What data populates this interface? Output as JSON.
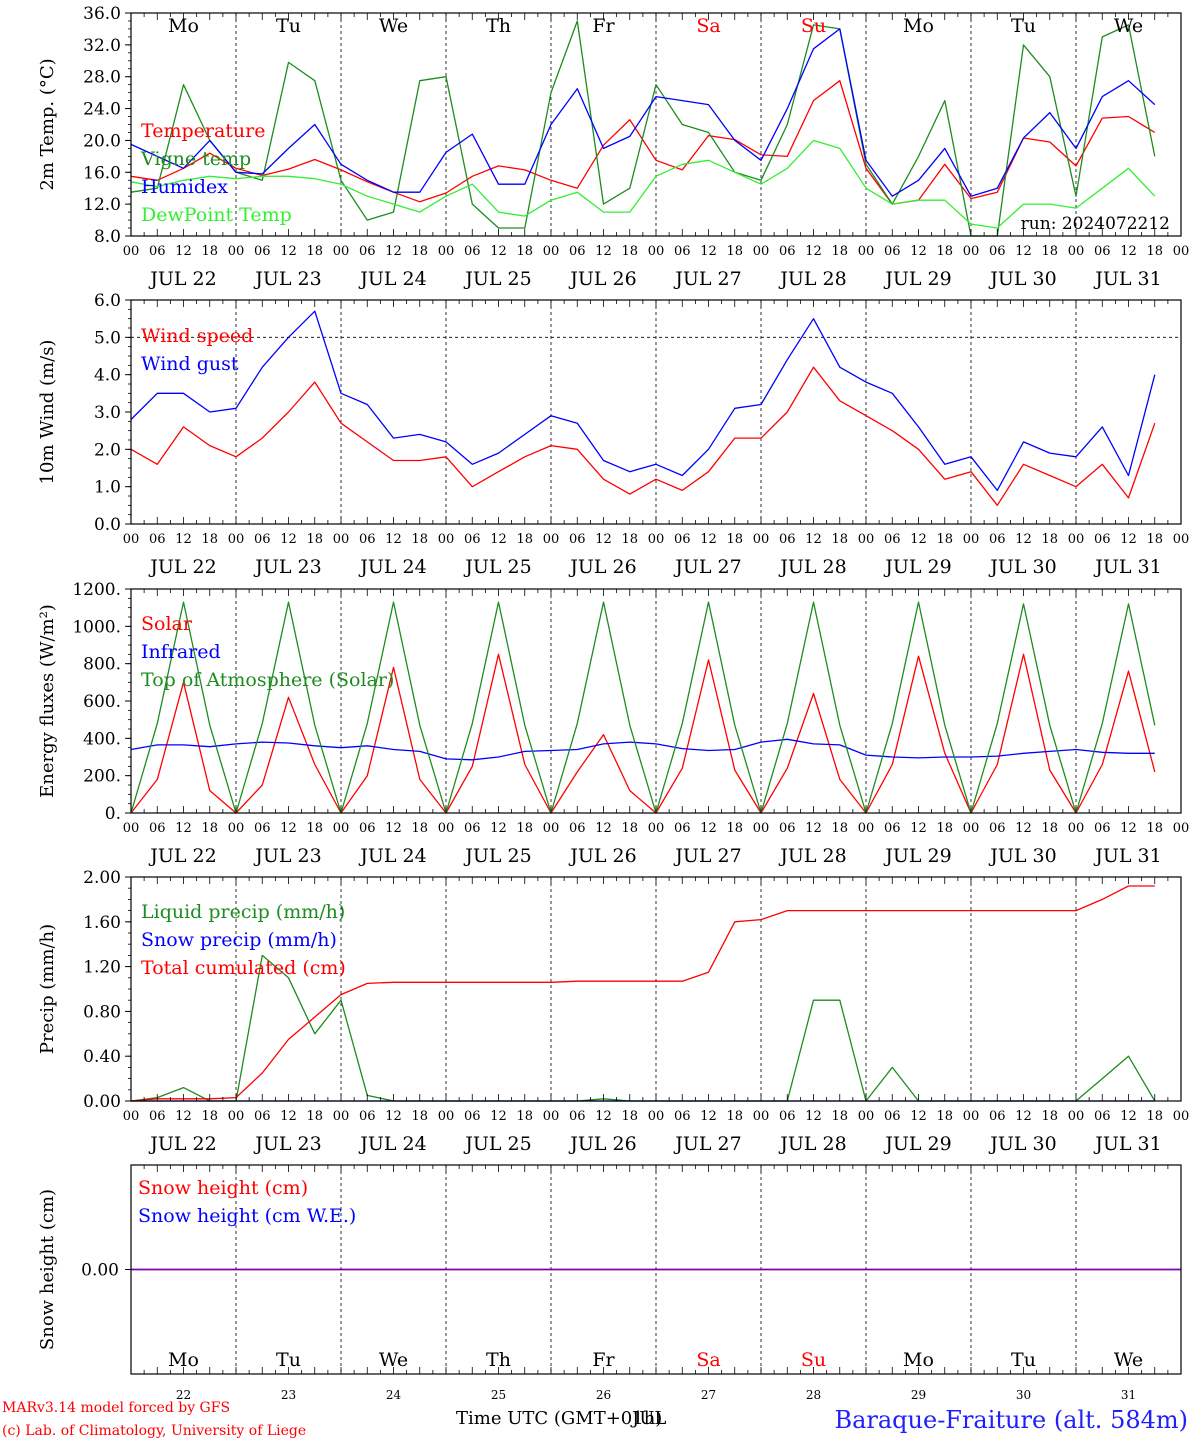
{
  "chart_data": [
    {
      "type": "line",
      "ylabel": "2m Temp. (°C)",
      "ylim": [
        8,
        36
      ],
      "yticks": [
        "8.0",
        "12.0",
        "16.0",
        "20.0",
        "24.0",
        "28.0",
        "32.0",
        "36.0"
      ],
      "dashed_levels": [],
      "run_label": "run: 2024072212",
      "x_hours": [
        0,
        6,
        12,
        18,
        24,
        30,
        36,
        42,
        48,
        54,
        60,
        66,
        72,
        78,
        84,
        90,
        96,
        102,
        108,
        114,
        120,
        126,
        132,
        138,
        144,
        150,
        156,
        162,
        168,
        174,
        180,
        186,
        192,
        198,
        204,
        210,
        216,
        222,
        228,
        234
      ],
      "series": [
        {
          "name": "Temperature",
          "color": "#ff0000",
          "values": [
            15.5,
            15.0,
            16.5,
            18.4,
            16.5,
            15.6,
            16.4,
            17.6,
            16.3,
            14.8,
            13.5,
            12.3,
            13.4,
            15.5,
            16.8,
            16.3,
            15.0,
            14.0,
            19.4,
            22.6,
            17.5,
            16.3,
            20.6,
            20.1,
            18.2,
            18.0,
            25.0,
            27.5,
            16.5,
            12.0,
            12.5,
            17.0,
            12.7,
            13.5,
            20.3,
            19.8,
            16.8,
            22.8,
            23.0,
            21.0
          ]
        },
        {
          "name": "Vigne temp",
          "color": "#1e8c1e",
          "values": [
            13.5,
            14.0,
            27.0,
            20.0,
            16.0,
            15.0,
            29.8,
            27.5,
            15.0,
            10.0,
            11.0,
            27.5,
            28.0,
            12.0,
            9.0,
            9.0,
            26.0,
            35.0,
            12.0,
            14.0,
            27.0,
            22.0,
            21.0,
            16.0,
            15.0,
            22.0,
            34.5,
            34.0,
            17.0,
            12.0,
            18.0,
            25.0,
            8.0,
            7.5,
            32.0,
            28.0,
            13.0,
            33.0,
            34.5,
            18.0
          ]
        },
        {
          "name": "Humidex",
          "color": "#0000ff",
          "values": [
            19.5,
            18.0,
            16.5,
            20.0,
            16.0,
            15.8,
            19.0,
            22.0,
            17.0,
            15.0,
            13.5,
            13.5,
            18.5,
            20.8,
            14.5,
            14.5,
            22.0,
            26.5,
            19.0,
            20.5,
            25.5,
            25.0,
            24.5,
            20.0,
            17.5,
            24.0,
            31.5,
            34.0,
            17.5,
            13.0,
            15.0,
            19.0,
            13.0,
            14.0,
            20.3,
            23.5,
            19.0,
            25.5,
            27.5,
            24.5
          ]
        },
        {
          "name": "DewPoint Temp",
          "color": "#33ee33",
          "values": [
            14.8,
            14.2,
            15.0,
            15.5,
            15.2,
            15.5,
            15.5,
            15.2,
            14.5,
            13.0,
            12.0,
            11.0,
            13.0,
            14.5,
            11.0,
            10.5,
            12.5,
            13.5,
            11.0,
            11.0,
            15.5,
            17.0,
            17.5,
            16.0,
            14.5,
            16.5,
            20.0,
            19.0,
            14.0,
            12.0,
            12.5,
            12.5,
            9.5,
            9.0,
            12.0,
            12.0,
            11.5,
            14.0,
            16.5,
            13.0
          ]
        }
      ],
      "legend": [
        "Temperature",
        "Vigne temp",
        "Humidex",
        "DewPoint Temp"
      ]
    },
    {
      "type": "line",
      "ylabel": "10m Wind (m/s)",
      "ylim": [
        0,
        6
      ],
      "yticks": [
        "0.0",
        "1.0",
        "2.0",
        "3.0",
        "4.0",
        "5.0",
        "6.0"
      ],
      "dashed_levels": [
        5
      ],
      "x_hours": [
        0,
        6,
        12,
        18,
        24,
        30,
        36,
        42,
        48,
        54,
        60,
        66,
        72,
        78,
        84,
        90,
        96,
        102,
        108,
        114,
        120,
        126,
        132,
        138,
        144,
        150,
        156,
        162,
        168,
        174,
        180,
        186,
        192,
        198,
        204,
        210,
        216,
        222,
        228,
        234
      ],
      "series": [
        {
          "name": "Wind speed",
          "color": "#ff0000",
          "values": [
            2.0,
            1.6,
            2.6,
            2.1,
            1.8,
            2.3,
            3.0,
            3.8,
            2.7,
            2.2,
            1.7,
            1.7,
            1.8,
            1.0,
            1.4,
            1.8,
            2.1,
            2.0,
            1.2,
            0.8,
            1.2,
            0.9,
            1.4,
            2.3,
            2.3,
            3.0,
            4.2,
            3.3,
            2.9,
            2.5,
            2.0,
            1.2,
            1.4,
            0.5,
            1.6,
            1.3,
            1.0,
            1.6,
            0.7,
            2.7
          ]
        },
        {
          "name": "Wind gust",
          "color": "#0000ff",
          "values": [
            2.8,
            3.5,
            3.5,
            3.0,
            3.1,
            4.2,
            5.0,
            5.7,
            3.5,
            3.2,
            2.3,
            2.4,
            2.2,
            1.6,
            1.9,
            2.4,
            2.9,
            2.7,
            1.7,
            1.4,
            1.6,
            1.3,
            2.0,
            3.1,
            3.2,
            4.4,
            5.5,
            4.2,
            3.8,
            3.5,
            2.6,
            1.6,
            1.8,
            0.9,
            2.2,
            1.9,
            1.8,
            2.6,
            1.3,
            4.0
          ]
        }
      ],
      "legend": [
        "Wind speed",
        "Wind gust"
      ]
    },
    {
      "type": "line",
      "ylabel": "Energy fluxes (W/m²)",
      "ylim": [
        0,
        1200
      ],
      "yticks": [
        "0.",
        "200.",
        "400.",
        "600.",
        "800.",
        "1000.",
        "1200."
      ],
      "dashed_levels": [],
      "x_hours": [
        0,
        6,
        12,
        18,
        24,
        30,
        36,
        42,
        48,
        54,
        60,
        66,
        72,
        78,
        84,
        90,
        96,
        102,
        108,
        114,
        120,
        126,
        132,
        138,
        144,
        150,
        156,
        162,
        168,
        174,
        180,
        186,
        192,
        198,
        204,
        210,
        216,
        222,
        228,
        234
      ],
      "series": [
        {
          "name": "Solar",
          "color": "#ff0000",
          "values": [
            0,
            180,
            700,
            120,
            0,
            150,
            620,
            260,
            0,
            200,
            780,
            180,
            0,
            250,
            850,
            260,
            0,
            220,
            420,
            120,
            0,
            240,
            820,
            230,
            0,
            240,
            640,
            180,
            0,
            260,
            840,
            320,
            0,
            260,
            850,
            230,
            0,
            260,
            760,
            220
          ]
        },
        {
          "name": "Infrared",
          "color": "#0000ff",
          "values": [
            340,
            365,
            365,
            355,
            370,
            380,
            375,
            360,
            350,
            360,
            340,
            330,
            290,
            285,
            300,
            330,
            335,
            340,
            370,
            380,
            370,
            345,
            335,
            340,
            380,
            395,
            370,
            365,
            310,
            300,
            295,
            300,
            300,
            305,
            320,
            330,
            340,
            325,
            320,
            320
          ]
        },
        {
          "name": "Top of Atmosphere (Solar)",
          "color": "#1e8c1e",
          "values": [
            0,
            480,
            1130,
            470,
            0,
            480,
            1130,
            470,
            0,
            480,
            1130,
            470,
            0,
            480,
            1130,
            470,
            0,
            480,
            1130,
            470,
            0,
            480,
            1130,
            470,
            0,
            480,
            1130,
            470,
            0,
            480,
            1130,
            470,
            0,
            480,
            1120,
            470,
            0,
            480,
            1120,
            470
          ]
        }
      ],
      "legend": [
        "Solar",
        "Infrared",
        "Top of Atmosphere (Solar)"
      ]
    },
    {
      "type": "line",
      "ylabel": "Precip (mm/h)",
      "ylim": [
        0,
        2
      ],
      "yticks": [
        "0.00",
        "0.40",
        "0.80",
        "1.20",
        "1.60",
        "2.00"
      ],
      "dashed_levels": [],
      "x_hours": [
        0,
        6,
        12,
        18,
        24,
        30,
        36,
        42,
        48,
        54,
        60,
        66,
        72,
        78,
        84,
        90,
        96,
        102,
        108,
        114,
        120,
        126,
        132,
        138,
        144,
        150,
        156,
        162,
        168,
        174,
        180,
        186,
        192,
        198,
        204,
        210,
        216,
        222,
        228,
        234
      ],
      "series": [
        {
          "name": "Liquid precip (mm/h)",
          "color": "#1e8c1e",
          "values": [
            0,
            0.03,
            0.12,
            0,
            0,
            1.3,
            1.1,
            0.6,
            0.9,
            0.05,
            0,
            0,
            0,
            0,
            0,
            0,
            0,
            0,
            0.02,
            0,
            0,
            0,
            0,
            0,
            0,
            0,
            0.9,
            0.9,
            0,
            0.3,
            0,
            0,
            0,
            0,
            0,
            0,
            0,
            0.2,
            0.4,
            0
          ]
        },
        {
          "name": "Snow precip (mm/h)",
          "color": "#0000ff",
          "values": [
            0,
            0,
            0,
            0,
            0,
            0,
            0,
            0,
            0,
            0,
            0,
            0,
            0,
            0,
            0,
            0,
            0,
            0,
            0,
            0,
            0,
            0,
            0,
            0,
            0,
            0,
            0,
            0,
            0,
            0,
            0,
            0,
            0,
            0,
            0,
            0,
            0,
            0,
            0,
            0
          ]
        },
        {
          "name": "Total cumulated (cm)",
          "color": "#ff0000",
          "values": [
            0,
            0.02,
            0.02,
            0.02,
            0.03,
            0.25,
            0.55,
            0.75,
            0.95,
            1.05,
            1.06,
            1.06,
            1.06,
            1.06,
            1.06,
            1.06,
            1.06,
            1.07,
            1.07,
            1.07,
            1.07,
            1.07,
            1.15,
            1.6,
            1.62,
            1.7,
            1.7,
            1.7,
            1.7,
            1.7,
            1.7,
            1.7,
            1.7,
            1.7,
            1.7,
            1.7,
            1.7,
            1.8,
            1.92,
            1.92
          ]
        }
      ],
      "legend": [
        "Liquid precip (mm/h)",
        "Snow precip (mm/h)",
        "Total cumulated (cm)"
      ]
    },
    {
      "type": "line",
      "ylabel": "Snow height (cm)",
      "ylim": [
        -1,
        1
      ],
      "yticks": [
        "0.00"
      ],
      "dashed_levels": [],
      "x_hours": [
        0,
        240
      ],
      "series": [
        {
          "name": "Snow height (cm)",
          "color": "#ff0000",
          "values": [
            0,
            0
          ]
        },
        {
          "name": "Snow height (cm W.E.)",
          "color": "#0000ff",
          "values": [
            0,
            0
          ]
        }
      ],
      "legend": [
        "Snow height (cm)",
        "Snow height (cm W.E.)"
      ]
    }
  ],
  "days": [
    {
      "abbr": "Mo",
      "date": "JUL 22",
      "num": "22",
      "weekend": false
    },
    {
      "abbr": "Tu",
      "date": "JUL 23",
      "num": "23",
      "weekend": false
    },
    {
      "abbr": "We",
      "date": "JUL 24",
      "num": "24",
      "weekend": false
    },
    {
      "abbr": "Th",
      "date": "JUL 25",
      "num": "25",
      "weekend": false
    },
    {
      "abbr": "Fr",
      "date": "JUL 26",
      "num": "26",
      "weekend": false
    },
    {
      "abbr": "Sa",
      "date": "JUL 27",
      "num": "27",
      "weekend": true
    },
    {
      "abbr": "Su",
      "date": "JUL 28",
      "num": "28",
      "weekend": true
    },
    {
      "abbr": "Mo",
      "date": "JUL 29",
      "num": "29",
      "weekend": false
    },
    {
      "abbr": "Tu",
      "date": "JUL 30",
      "num": "30",
      "weekend": false
    },
    {
      "abbr": "We",
      "date": "JUL 31",
      "num": "31",
      "weekend": false
    }
  ],
  "hour_ticks": [
    "00",
    "06",
    "12",
    "18"
  ],
  "x_label": "Time UTC (GMT+01h)",
  "x_label_overlap": "JUL",
  "footer_model": "MARv3.14 model forced by GFS",
  "footer_lab": "(c) Lab. of Climatology, University of Liege",
  "station": "Baraque-Fraiture (alt. 584m)",
  "colors": {
    "weekend": "#ff0000",
    "weekday": "#000000"
  }
}
